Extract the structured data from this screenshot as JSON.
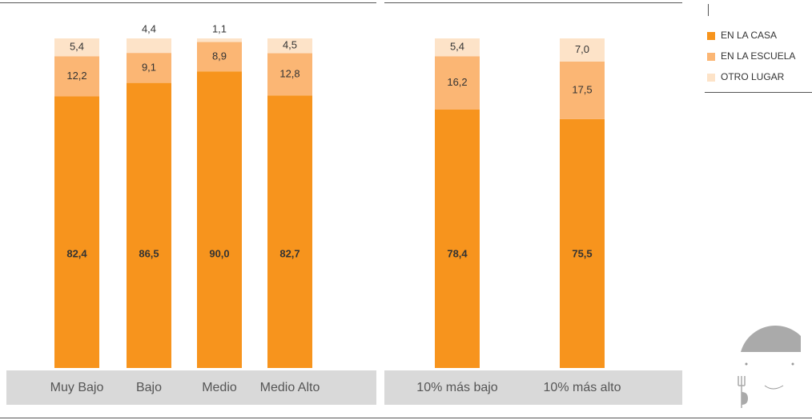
{
  "chart_data": [
    {
      "type": "bar",
      "stacked": true,
      "categories": [
        "Muy Bajo",
        "Bajo",
        "Medio",
        "Medio Alto"
      ],
      "ylim": [
        0,
        100
      ],
      "series": [
        {
          "color": "#f7941d",
          "values": [
            82.4,
            86.5,
            90.0,
            82.7
          ],
          "value_labels": [
            "82,4",
            "86,5",
            "90,0",
            "82,7"
          ]
        },
        {
          "color": "#fbb674",
          "values": [
            12.2,
            9.1,
            8.9,
            12.8
          ],
          "value_labels": [
            "12,2",
            "9,1",
            "8,9",
            "12,8"
          ]
        },
        {
          "color": "#fde3c8",
          "values": [
            5.4,
            4.4,
            1.1,
            4.5
          ],
          "value_labels": [
            "5,4",
            "4,4",
            "1,1",
            "4,5"
          ]
        }
      ]
    },
    {
      "type": "bar",
      "stacked": true,
      "categories": [
        "10% más bajo",
        "10% más alto"
      ],
      "ylim": [
        0,
        100
      ],
      "legend": "right",
      "series": [
        {
          "name": "EN LA CASA",
          "color": "#f7941d",
          "values": [
            78.4,
            75.5
          ],
          "value_labels": [
            "78,4",
            "75,5"
          ]
        },
        {
          "name": "EN LA ESCUELA",
          "color": "#fbb674",
          "values": [
            16.2,
            17.5
          ],
          "value_labels": [
            "16,2",
            "17,5"
          ]
        },
        {
          "name": "OTRO LUGAR",
          "color": "#fde3c8",
          "values": [
            5.4,
            7.0
          ],
          "value_labels": [
            "5,4",
            "7,0"
          ]
        }
      ]
    }
  ]
}
